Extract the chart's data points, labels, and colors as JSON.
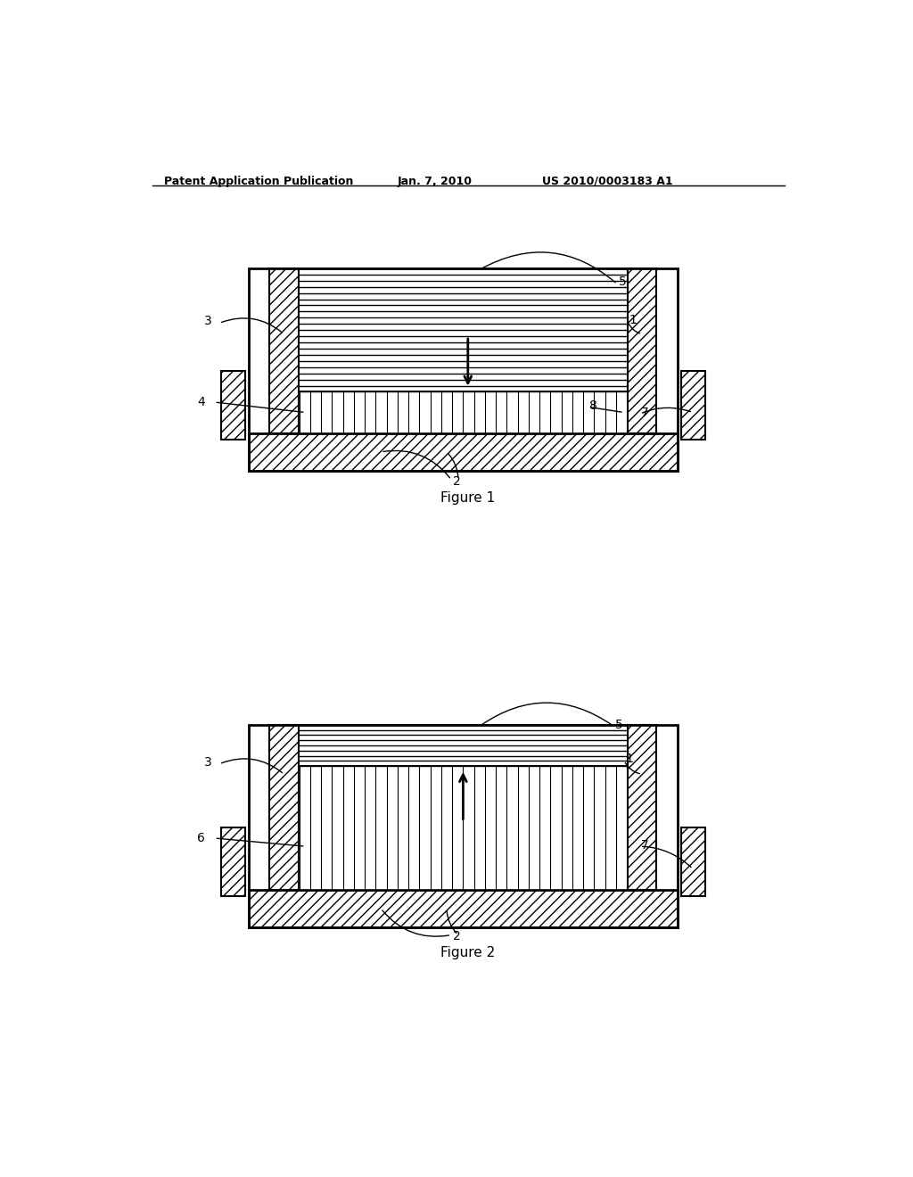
{
  "bg_color": "#ffffff",
  "header_left": "Patent Application Publication",
  "header_center": "Jan. 7, 2010",
  "header_right": "US 2010/0003183 A1",
  "fig1_caption": "Figure 1",
  "fig2_caption": "Figure 2",
  "lc": "#000000"
}
